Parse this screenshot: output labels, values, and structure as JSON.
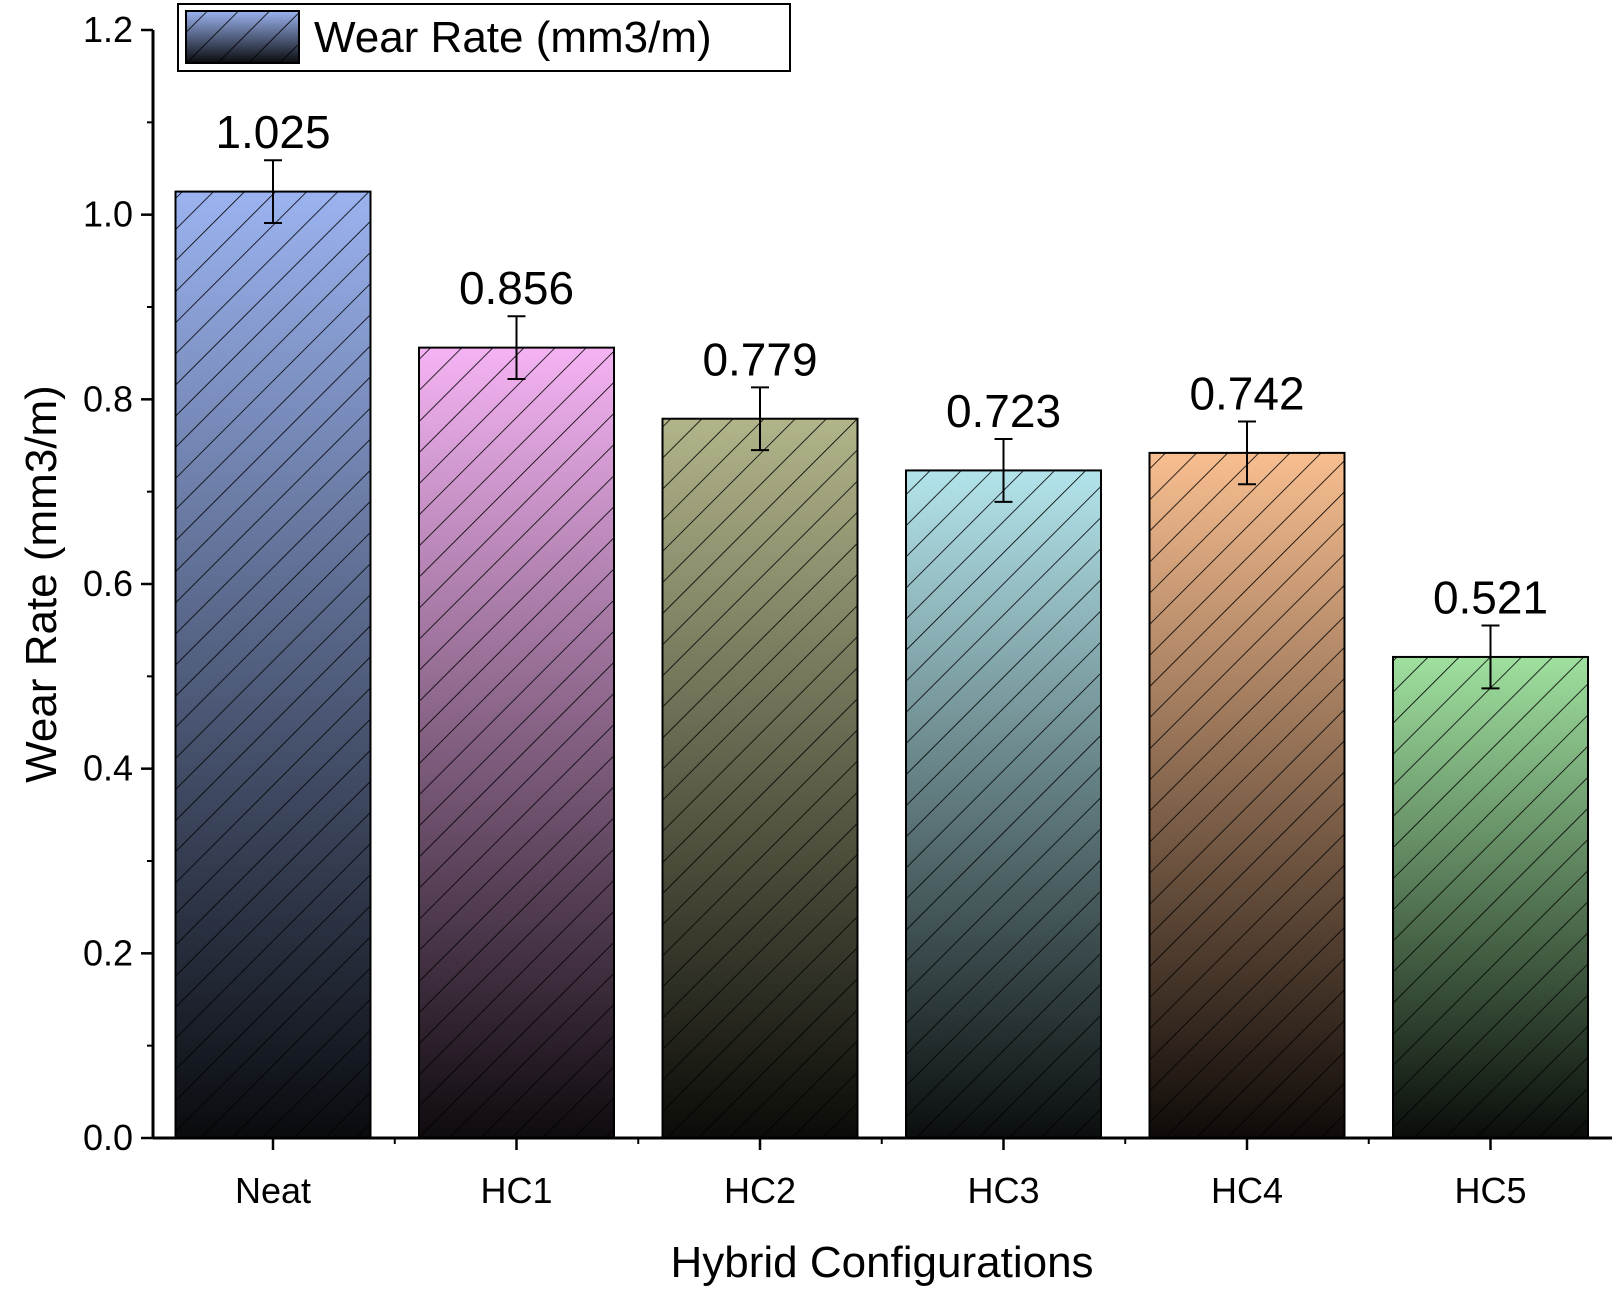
{
  "chart_data": {
    "type": "bar",
    "categories": [
      "Neat",
      "HC1",
      "HC2",
      "HC3",
      "HC4",
      "HC5"
    ],
    "series": [
      {
        "name": "Wear Rate (mm3/m)",
        "values": [
          1.025,
          0.856,
          0.779,
          0.723,
          0.742,
          0.521
        ],
        "errors": [
          0.034,
          0.034,
          0.034,
          0.034,
          0.034,
          0.034
        ]
      }
    ],
    "data_labels": [
      "1.025",
      "0.856",
      "0.779",
      "0.723",
      "0.742",
      "0.521"
    ],
    "xlabel": "Hybrid Configurations",
    "ylabel": "Wear Rate (mm3/m)",
    "ylim": [
      0,
      1.2
    ],
    "yticks": [
      "0.0",
      "0.2",
      "0.4",
      "0.6",
      "0.8",
      "1.0",
      "1.2"
    ],
    "legend_position": "top-left",
    "grid": false,
    "pattern": "diagonal hatch",
    "bar_colors": [
      "#9bb3f0",
      "#f5b3f3",
      "#b2b48a",
      "#b3e4eb",
      "#f8be90",
      "#9fe09f"
    ],
    "legend_color": "#9bb3f0"
  }
}
